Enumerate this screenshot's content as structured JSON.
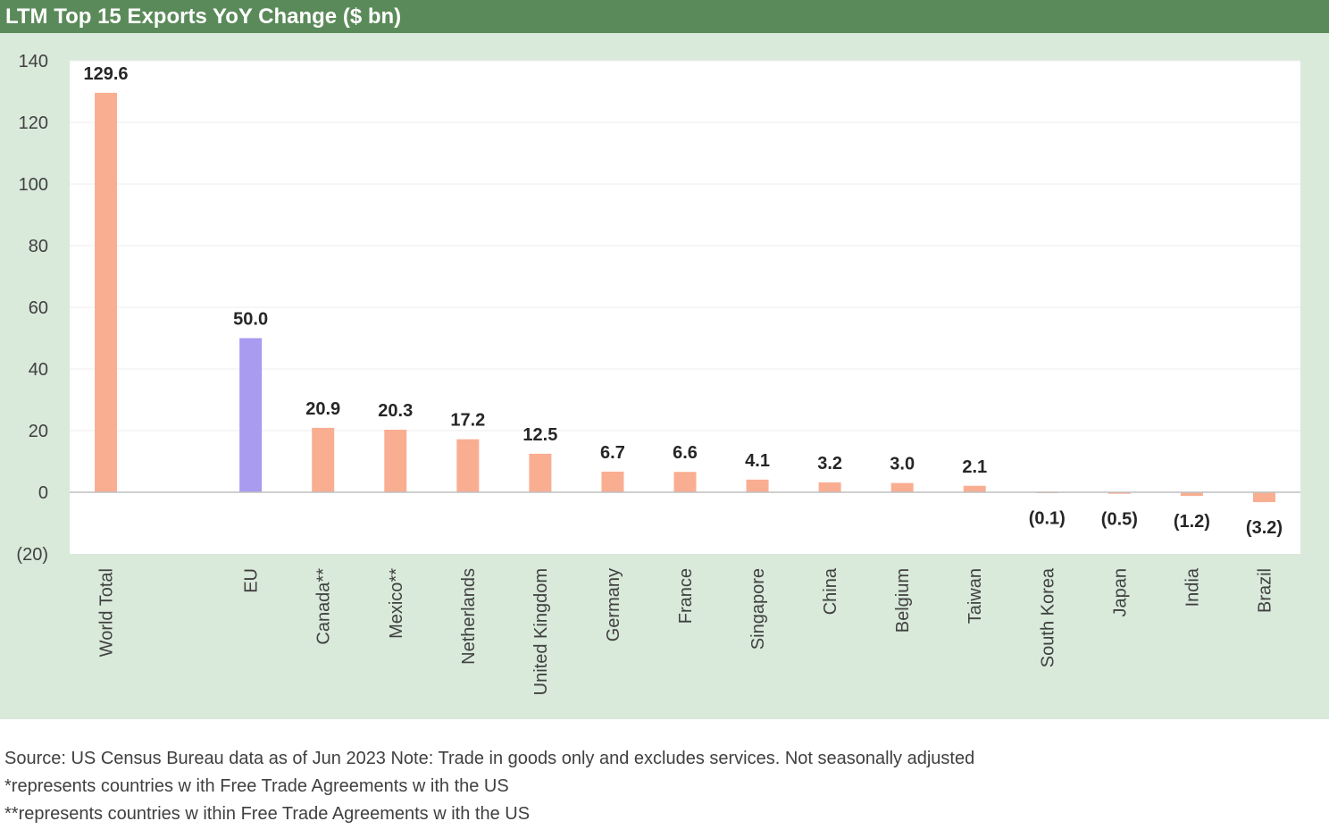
{
  "chart_data": {
    "type": "bar",
    "title": "LTM Top 15 Exports YoY Change ($ bn)",
    "categories": [
      "World Total",
      "EU",
      "Canada**",
      "Mexico**",
      "Netherlands",
      "United Kingdom",
      "Germany",
      "France",
      "Singapore",
      "China",
      "Belgium",
      "Taiwan",
      "South Korea",
      "Japan",
      "India",
      "Brazil"
    ],
    "values": [
      129.6,
      50.0,
      20.9,
      20.3,
      17.2,
      12.5,
      6.7,
      6.6,
      4.1,
      3.2,
      3.0,
      2.1,
      -0.1,
      -0.5,
      -1.2,
      -3.2
    ],
    "data_labels": [
      "129.6",
      "50.0",
      "20.9",
      "20.3",
      "17.2",
      "12.5",
      "6.7",
      "6.6",
      "4.1",
      "3.2",
      "3.0",
      "2.1",
      "(0.1)",
      "(0.5)",
      "(1.2)",
      "(3.2)"
    ],
    "bar_colors": [
      "#f9ae91",
      "#a89bf0",
      "#f9ae91",
      "#f9ae91",
      "#f9ae91",
      "#f9ae91",
      "#f9ae91",
      "#f9ae91",
      "#f9ae91",
      "#f9ae91",
      "#f9ae91",
      "#f9ae91",
      "#f9ae91",
      "#f9ae91",
      "#f9ae91",
      "#f9ae91"
    ],
    "yticks": [
      140,
      120,
      100,
      80,
      60,
      40,
      20,
      0,
      -20
    ],
    "ytick_labels": [
      "140",
      "120",
      "100",
      "80",
      "60",
      "40",
      "20",
      "0",
      "(20)"
    ],
    "ylim": [
      -20,
      140
    ],
    "grid": true,
    "colors": {
      "title_bar": "#5a8a59",
      "chart_background": "#d9e9da",
      "plot_background": "#ffffff",
      "gridline": "#eeeeee",
      "zero_line": "#bfbfbf",
      "label_text": "#262626",
      "negative_text": "#e60000"
    }
  },
  "notes": [
    "Source: US Census Bureau data as of Jun 2023 Note: Trade in goods only and excludes services. Not seasonally adjusted",
    "*represents countries w ith Free Trade Agreements w ith the US",
    "**represents countries w ithin Free Trade Agreements w ith the US"
  ]
}
